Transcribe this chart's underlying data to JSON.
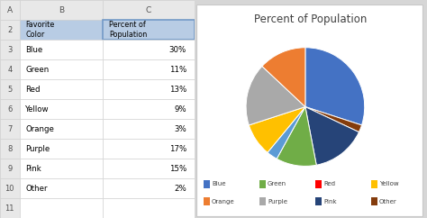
{
  "title": "Percent of Population",
  "labels": [
    "Blue",
    "Green",
    "Red",
    "Yellow",
    "Orange",
    "Purple",
    "Pink",
    "Other"
  ],
  "values": [
    30,
    11,
    13,
    9,
    3,
    17,
    15,
    2
  ],
  "colors": [
    "#4472C4",
    "#ED7D31",
    "#A9A9A9",
    "#FFC000",
    "#5B9BD5",
    "#70AD47",
    "#264478",
    "#843C0C"
  ],
  "legend_colors": [
    "#4472C4",
    "#70AD47",
    "#FF0000",
    "#FFC000",
    "#ED7D31",
    "#A9A9A9",
    "#264478",
    "#843C0C"
  ],
  "table_rows": [
    [
      "Blue",
      "30%"
    ],
    [
      "Green",
      "11%"
    ],
    [
      "Red",
      "13%"
    ],
    [
      "Yellow",
      "9%"
    ],
    [
      "Orange",
      "3%"
    ],
    [
      "Purple",
      "17%"
    ],
    [
      "Pink",
      "15%"
    ],
    [
      "Other",
      "2%"
    ]
  ],
  "header_bg": "#B8CCE4",
  "grid_color": "#D0D0D0",
  "excel_bg": "#D6D6D6",
  "chart_bg": "#FFFFFF",
  "figsize": [
    4.74,
    2.42
  ],
  "dpi": 100
}
